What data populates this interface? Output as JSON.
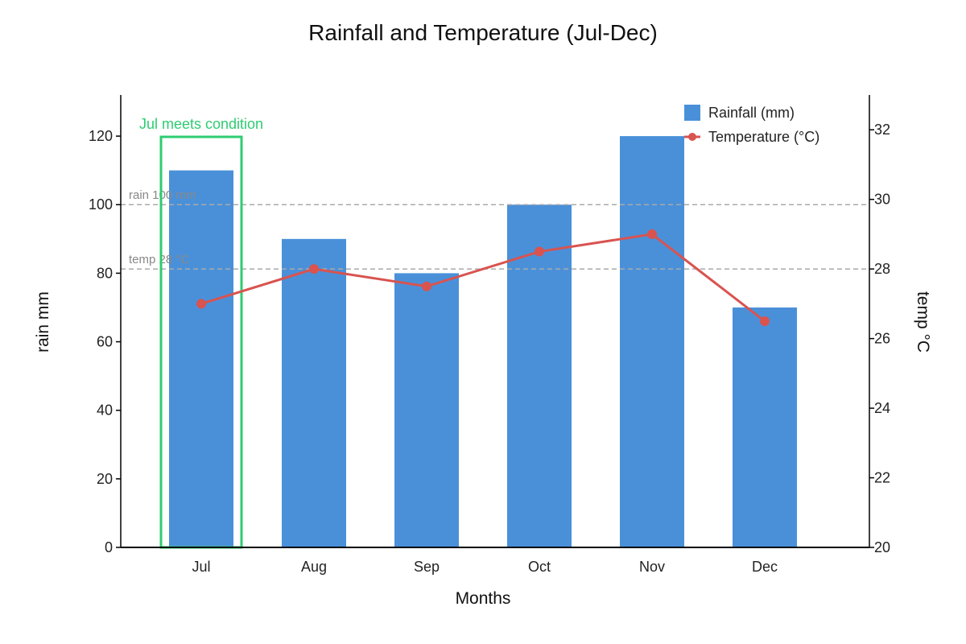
{
  "chart_data": {
    "type": "bar",
    "title": "Rainfall and Temperature (Jul-Dec)",
    "xlabel": "Months",
    "ylabel": "rain mm",
    "y2label": "temp °C",
    "categories": [
      "Jul",
      "Aug",
      "Sep",
      "Oct",
      "Nov",
      "Dec"
    ],
    "ylim": [
      0,
      132
    ],
    "y2lim": [
      20,
      33
    ],
    "yticks": [
      0,
      20,
      40,
      60,
      80,
      100,
      120
    ],
    "y2ticks": [
      20,
      22,
      24,
      26,
      28,
      30,
      32
    ],
    "series": [
      {
        "name": "Rainfall (mm)",
        "type": "bar",
        "axis": "left",
        "color": "#4a90d9",
        "values": [
          110,
          90,
          80,
          100,
          120,
          70
        ]
      },
      {
        "name": "Temperature (°C)",
        "type": "line",
        "axis": "right",
        "color": "#d9534f",
        "values": [
          27,
          28,
          27.5,
          28.5,
          29,
          26.5
        ]
      }
    ],
    "reference_lines": [
      {
        "label": "rain 100 mm",
        "axis": "left",
        "value": 100,
        "color": "#aaaaaa"
      },
      {
        "label": "temp 28 °C",
        "axis": "right",
        "value": 28,
        "color": "#aaaaaa"
      }
    ],
    "annotations": [
      {
        "label": "Jul meets condition",
        "category": "Jul",
        "color": "#2ecc71"
      }
    ],
    "legend_position": "top-right",
    "grid": false
  }
}
